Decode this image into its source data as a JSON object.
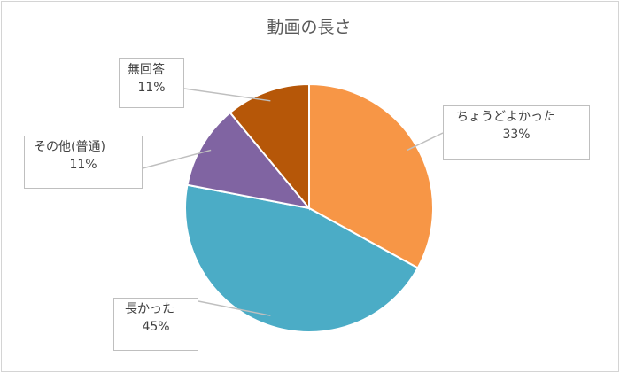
{
  "chart_data": {
    "type": "pie",
    "title": "動画の長さ",
    "slices": [
      {
        "label": "ちょうどよかった",
        "value": 33,
        "value_label": "33%",
        "color": "#F79646"
      },
      {
        "label": "長かった",
        "value": 45,
        "value_label": "45%",
        "color": "#4BACC6"
      },
      {
        "label": "その他(普通)",
        "value": 11,
        "value_label": "11%",
        "color": "#8064A2"
      },
      {
        "label": "無回答",
        "value": 11,
        "value_label": "11%",
        "color": "#B65708"
      }
    ],
    "start_angle_deg": 0,
    "direction": "clockwise",
    "legend": "none",
    "data_labels": "callouts"
  }
}
